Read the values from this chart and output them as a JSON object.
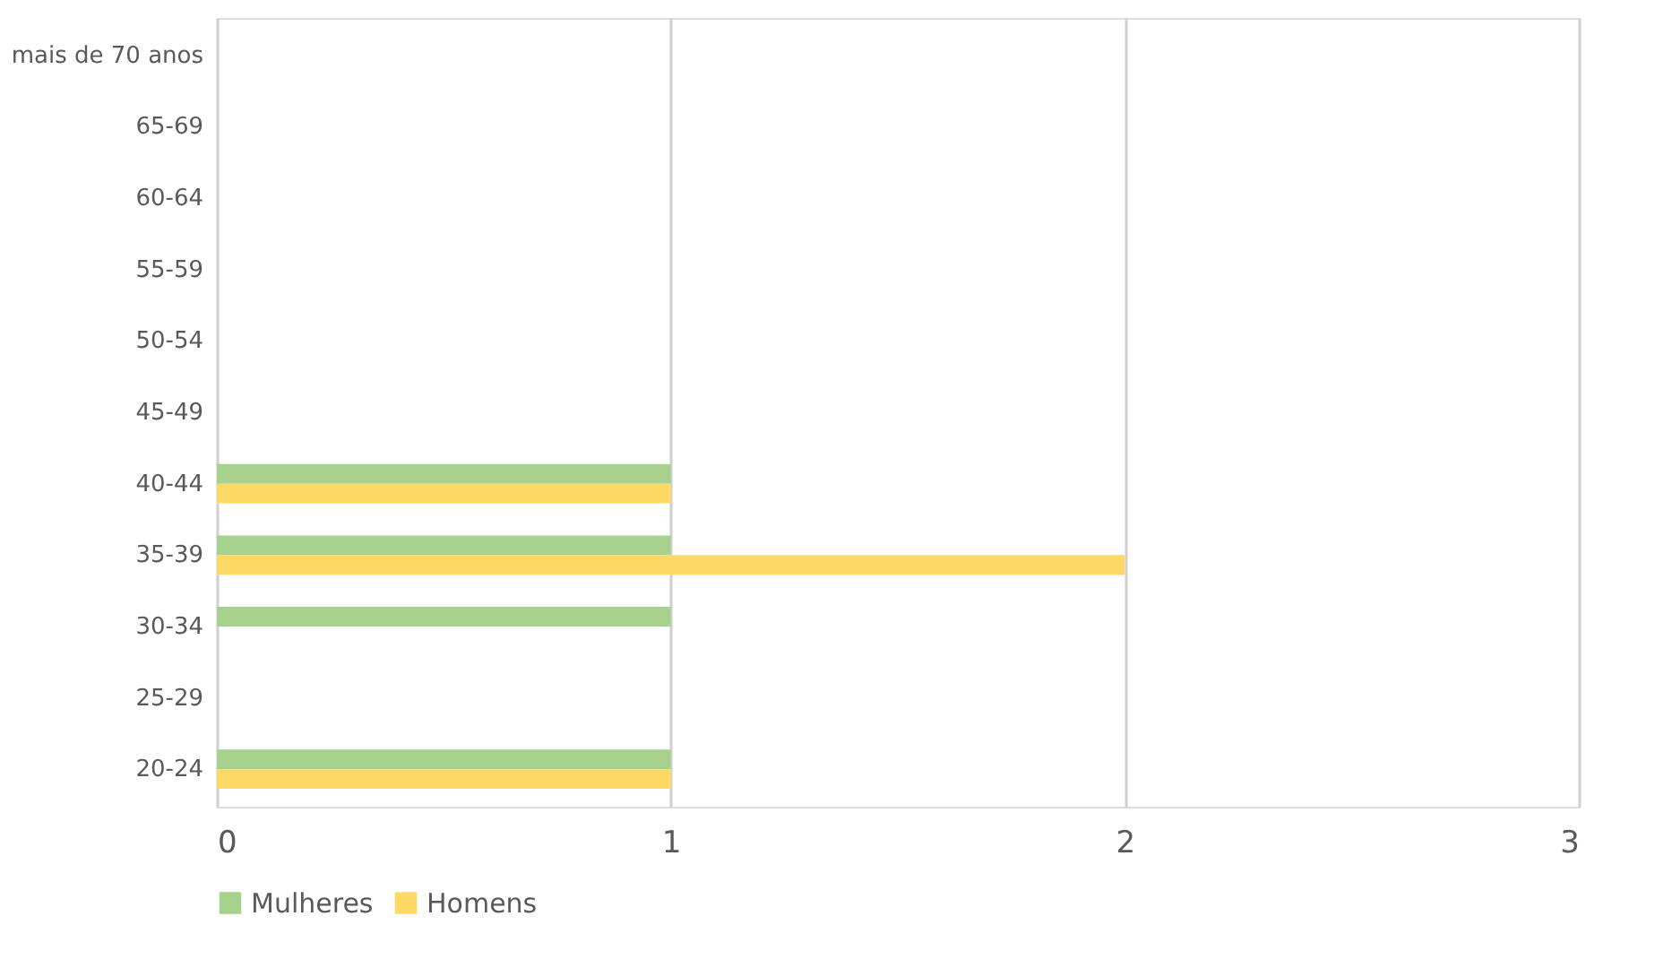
{
  "chart_data": {
    "type": "bar",
    "orientation": "horizontal",
    "categories": [
      "mais de 70 anos",
      "65-69",
      "60-64",
      "55-59",
      "50-54",
      "45-49",
      "40-44",
      "35-39",
      "30-34",
      "25-29",
      "20-24"
    ],
    "series": [
      {
        "name": "Mulheres",
        "color": "#a9d18e",
        "values": [
          0,
          0,
          0,
          0,
          0,
          0,
          1,
          1,
          1,
          0,
          1
        ]
      },
      {
        "name": "Homens",
        "color": "#ffd966",
        "values": [
          0,
          0,
          0,
          0,
          0,
          0,
          1,
          2,
          0,
          0,
          1
        ]
      }
    ],
    "xlim": [
      0,
      3
    ],
    "xticks": [
      0,
      1,
      2,
      3
    ],
    "grid": "x",
    "legend": "bottom"
  }
}
